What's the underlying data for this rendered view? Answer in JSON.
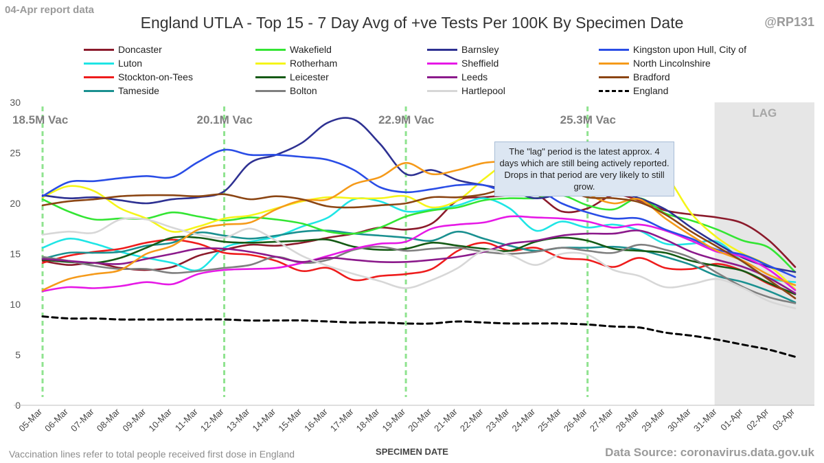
{
  "header": {
    "report_label": "04-Apr report data",
    "handle": "@RP131"
  },
  "footer": {
    "vaccination_note": "Vaccination lines refer to total people received first dose in England",
    "source": "Data Source: coronavirus.data.gov.uk"
  },
  "chart_data": {
    "type": "line",
    "title": "England UTLA - Top 15 - 7 Day Avg of +ve Tests Per 100K By Specimen Date",
    "xlabel": "SPECIMEN DATE",
    "ylabel": "",
    "ylim": [
      0,
      30
    ],
    "yticks": [
      0,
      5,
      10,
      15,
      20,
      25,
      30
    ],
    "categories": [
      "05-Mar",
      "06-Mar",
      "07-Mar",
      "08-Mar",
      "09-Mar",
      "10-Mar",
      "11-Mar",
      "12-Mar",
      "13-Mar",
      "14-Mar",
      "15-Mar",
      "16-Mar",
      "17-Mar",
      "18-Mar",
      "19-Mar",
      "20-Mar",
      "21-Mar",
      "22-Mar",
      "23-Mar",
      "24-Mar",
      "25-Mar",
      "26-Mar",
      "27-Mar",
      "28-Mar",
      "29-Mar",
      "30-Mar",
      "31-Mar",
      "01-Apr",
      "02-Apr",
      "03-Apr"
    ],
    "lag_region": {
      "start": "31-Mar",
      "end": "03-Apr",
      "label": "LAG"
    },
    "vaccination_markers": [
      {
        "date": "05-Mar",
        "label": "18.5M Vac"
      },
      {
        "date": "12-Mar",
        "label": "20.1M Vac"
      },
      {
        "date": "19-Mar",
        "label": "22.9M Vac"
      },
      {
        "date": "26-Mar",
        "label": "25.3M Vac"
      }
    ],
    "annotation": "The \"lag\" period is the latest approx. 4 days which are still being actively reported.  Drops in that period are very likely to still grow.",
    "series": [
      {
        "name": "Doncaster",
        "color": "#8b1a2b",
        "dashed": false,
        "values": [
          14.3,
          13.9,
          14.1,
          13.6,
          13.4,
          13.7,
          14.8,
          15.4,
          15.9,
          15.8,
          16.1,
          16.6,
          17.0,
          17.6,
          17.4,
          18.0,
          20.3,
          20.6,
          20.8,
          20.9,
          19.2,
          19.5,
          20.8,
          20.3,
          19.3,
          18.9,
          18.6,
          18.0,
          16.3,
          13.7
        ]
      },
      {
        "name": "Luton",
        "color": "#1fe5e5",
        "dashed": false,
        "values": [
          15.6,
          16.5,
          16.0,
          15.2,
          14.6,
          14.1,
          13.4,
          15.6,
          16.2,
          16.7,
          17.7,
          18.6,
          20.4,
          20.2,
          19.2,
          19.4,
          19.8,
          20.5,
          19.5,
          17.3,
          18.2,
          17.6,
          17.9,
          17.3,
          16.0,
          16.0,
          16.2,
          14.2,
          12.6,
          12.2
        ]
      },
      {
        "name": "Stockton-on-Tees",
        "color": "#ee1c1c",
        "dashed": false,
        "values": [
          14.1,
          14.8,
          15.2,
          15.5,
          16.1,
          16.4,
          16.0,
          15.1,
          14.9,
          14.3,
          13.3,
          13.6,
          12.4,
          12.8,
          13.0,
          13.5,
          15.3,
          16.1,
          15.3,
          15.6,
          14.6,
          14.4,
          13.7,
          14.6,
          13.6,
          13.5,
          14.0,
          13.3,
          12.0,
          11.0
        ]
      },
      {
        "name": "Tameside",
        "color": "#1a9090",
        "dashed": false,
        "values": [
          14.5,
          15.1,
          15.1,
          15.2,
          15.8,
          16.1,
          17.1,
          16.8,
          16.5,
          16.8,
          17.2,
          17.3,
          17.0,
          16.8,
          16.6,
          16.3,
          17.2,
          16.5,
          15.8,
          15.3,
          15.6,
          15.6,
          15.7,
          15.4,
          14.7,
          13.9,
          12.8,
          12.2,
          11.3,
          10.2
        ]
      },
      {
        "name": "Wakefield",
        "color": "#33e533",
        "dashed": false,
        "values": [
          20.4,
          19.2,
          18.4,
          18.5,
          18.5,
          19.1,
          18.7,
          18.3,
          18.6,
          18.4,
          18.0,
          17.2,
          17.0,
          17.6,
          18.7,
          19.3,
          19.6,
          20.3,
          20.5,
          20.5,
          20.8,
          19.8,
          19.4,
          20.5,
          19.0,
          18.3,
          17.4,
          16.3,
          15.6,
          13.2
        ]
      },
      {
        "name": "Rotherham",
        "color": "#f5f519",
        "dashed": false,
        "values": [
          20.6,
          21.7,
          21.2,
          19.5,
          18.5,
          17.2,
          17.7,
          18.5,
          18.8,
          19.5,
          20.2,
          20.6,
          20.5,
          20.5,
          20.7,
          19.6,
          20.3,
          22.4,
          24.2,
          24.6,
          24.0,
          23.8,
          24.3,
          24.1,
          22.8,
          19.0,
          16.6,
          15.0,
          13.8,
          11.5
        ]
      },
      {
        "name": "Leicester",
        "color": "#155a15",
        "dashed": false,
        "values": [
          14.4,
          14.2,
          14.1,
          14.6,
          15.6,
          16.6,
          16.6,
          16.2,
          16.1,
          16.2,
          16.3,
          16.4,
          15.7,
          15.4,
          15.5,
          16.1,
          15.8,
          15.5,
          15.3,
          16.2,
          16.6,
          16.3,
          15.5,
          15.3,
          15.1,
          14.3,
          13.8,
          13.3,
          12.1,
          11.0
        ]
      },
      {
        "name": "Bolton",
        "color": "#7f7f7f",
        "dashed": false,
        "values": [
          14.7,
          14.3,
          13.8,
          13.5,
          13.5,
          13.1,
          13.3,
          13.6,
          13.9,
          14.7,
          14.1,
          14.4,
          15.4,
          15.7,
          15.3,
          15.5,
          15.6,
          15.2,
          15.0,
          15.2,
          15.6,
          15.3,
          15.1,
          15.9,
          15.4,
          14.6,
          13.1,
          11.7,
          10.7,
          10.1
        ]
      },
      {
        "name": "Barnsley",
        "color": "#2e3192",
        "dashed": false,
        "values": [
          20.8,
          20.5,
          20.6,
          20.3,
          20.0,
          20.4,
          20.6,
          21.2,
          24.0,
          24.8,
          26.0,
          28.0,
          28.3,
          25.9,
          22.9,
          23.3,
          22.3,
          21.8,
          21.3,
          20.5,
          21.0,
          21.8,
          21.2,
          20.5,
          19.4,
          17.6,
          16.0,
          14.6,
          13.7,
          13.2
        ]
      },
      {
        "name": "Sheffield",
        "color": "#e619e6",
        "dashed": false,
        "values": [
          11.3,
          11.7,
          11.6,
          11.8,
          12.2,
          12.0,
          13.0,
          13.4,
          13.5,
          13.6,
          14.1,
          14.8,
          15.5,
          16.0,
          16.2,
          17.5,
          17.9,
          18.1,
          18.7,
          18.6,
          18.5,
          18.2,
          17.6,
          17.9,
          17.3,
          16.3,
          15.2,
          14.7,
          13.4,
          11.4
        ]
      },
      {
        "name": "Leeds",
        "color": "#8b1a8b",
        "dashed": false,
        "values": [
          14.5,
          14.3,
          14.1,
          14.0,
          14.5,
          15.0,
          15.5,
          15.5,
          15.2,
          14.7,
          14.2,
          14.6,
          14.4,
          14.2,
          14.2,
          14.4,
          14.7,
          15.2,
          16.0,
          16.3,
          16.8,
          17.0,
          17.0,
          17.3,
          16.4,
          15.2,
          14.4,
          13.7,
          12.6,
          11.1
        ]
      },
      {
        "name": "Hartlepool",
        "color": "#d7d7d7",
        "dashed": false,
        "values": [
          16.9,
          17.2,
          17.1,
          18.4,
          18.4,
          17.6,
          16.9,
          16.6,
          17.5,
          16.3,
          14.8,
          13.8,
          13.0,
          12.3,
          11.6,
          12.4,
          13.6,
          15.3,
          14.9,
          13.9,
          15.0,
          14.9,
          13.4,
          12.8,
          11.7,
          12.0,
          12.5,
          11.6,
          10.3,
          9.6
        ]
      },
      {
        "name": "Kingston upon Hull, City of",
        "color": "#2a4de6",
        "dashed": false,
        "values": [
          20.7,
          22.1,
          22.2,
          22.5,
          22.7,
          22.6,
          24.1,
          25.3,
          24.8,
          24.8,
          24.6,
          24.3,
          23.3,
          21.6,
          21.1,
          21.4,
          21.8,
          21.8,
          21.0,
          21.4,
          20.0,
          19.1,
          18.5,
          18.5,
          17.4,
          16.5,
          15.4,
          14.9,
          13.8,
          12.7
        ]
      },
      {
        "name": "North Lincolnshire",
        "color": "#f59a1a",
        "dashed": false,
        "values": [
          11.4,
          12.5,
          13.0,
          13.4,
          15.0,
          15.8,
          17.4,
          17.9,
          18.1,
          19.4,
          20.3,
          20.4,
          21.9,
          22.6,
          24.0,
          22.9,
          23.3,
          24.0,
          24.2,
          24.5,
          23.5,
          21.0,
          20.0,
          20.4,
          18.5,
          16.8,
          15.3,
          14.3,
          12.9,
          11.9
        ]
      },
      {
        "name": "Bradford",
        "color": "#8b4513",
        "dashed": false,
        "values": [
          19.8,
          20.2,
          20.4,
          20.7,
          20.8,
          20.8,
          20.7,
          20.9,
          20.4,
          20.7,
          20.4,
          19.7,
          19.6,
          19.8,
          20.0,
          20.6,
          20.6,
          20.9,
          21.6,
          21.8,
          21.5,
          20.6,
          20.5,
          20.1,
          18.9,
          17.2,
          15.7,
          14.2,
          12.4,
          10.6
        ]
      },
      {
        "name": "England",
        "color": "#000000",
        "dashed": true,
        "values": [
          8.8,
          8.6,
          8.6,
          8.5,
          8.5,
          8.5,
          8.5,
          8.5,
          8.4,
          8.4,
          8.4,
          8.3,
          8.2,
          8.2,
          8.1,
          8.1,
          8.3,
          8.2,
          8.1,
          8.1,
          8.1,
          8.0,
          7.8,
          7.7,
          7.2,
          6.9,
          6.5,
          6.0,
          5.5,
          4.8
        ]
      }
    ],
    "legend_order": [
      "Doncaster",
      "Wakefield",
      "Barnsley",
      "Kingston upon Hull, City of",
      "Luton",
      "Rotherham",
      "Sheffield",
      "North Lincolnshire",
      "Stockton-on-Tees",
      "Leicester",
      "Leeds",
      "Bradford",
      "Tameside",
      "Bolton",
      "Hartlepool",
      "England"
    ]
  }
}
